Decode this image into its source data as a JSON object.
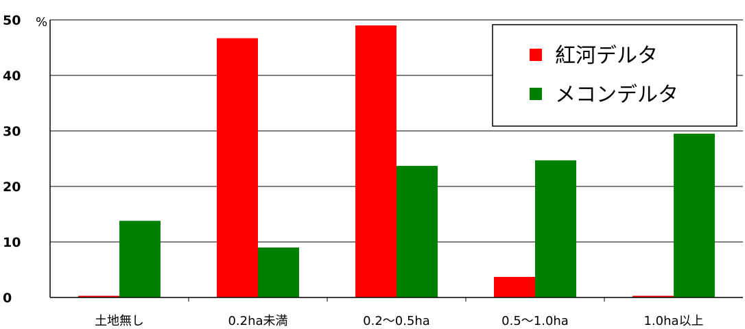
{
  "chart_data": {
    "type": "bar",
    "title": "",
    "xlabel": "",
    "ylabel": "",
    "y_unit": "%",
    "ylim": [
      0,
      50
    ],
    "yticks": [
      0,
      10,
      20,
      30,
      40,
      50
    ],
    "grid": true,
    "legend_position": "top-right",
    "categories": [
      "土地無し",
      "0.2ha未満",
      "0.2～0.5ha",
      "0.5～1.0ha",
      "1.0ha以上"
    ],
    "series": [
      {
        "name": "紅河デルタ",
        "color": "#ff0000",
        "values": [
          0.3,
          46.7,
          49,
          3.7,
          0.3
        ]
      },
      {
        "name": "メコンデルタ",
        "color": "#008000",
        "values": [
          13.8,
          9,
          23.7,
          24.7,
          29.5
        ]
      }
    ]
  }
}
